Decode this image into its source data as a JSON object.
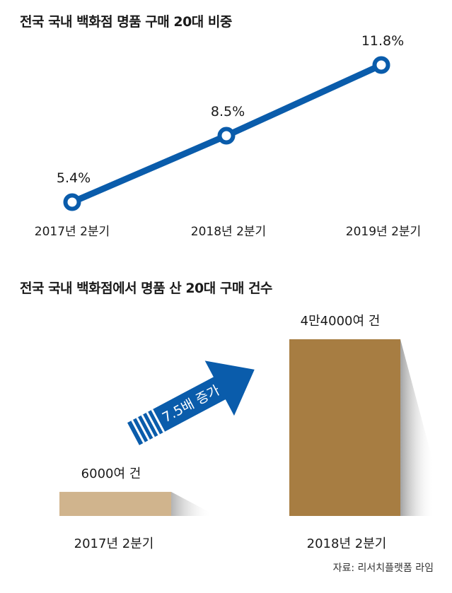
{
  "chart_data": [
    {
      "type": "line",
      "title": "전국 국내 백화점 명품 구매 20대 비중",
      "categories": [
        "2017년 2분기",
        "2018년 2분기",
        "2019년 2분기"
      ],
      "values": [
        5.4,
        8.5,
        11.8
      ],
      "value_labels": [
        "5.4%",
        "8.5%",
        "11.8%"
      ],
      "color": "#0a5cab"
    },
    {
      "type": "bar",
      "title": "전국 국내 백화점에서 명품 산 20대 구매 건수",
      "categories": [
        "2017년 2분기",
        "2018년 2분기"
      ],
      "values": [
        6000,
        44000
      ],
      "value_labels": [
        "6000여 건",
        "4만4000여 건"
      ],
      "colors": [
        "#d0b48d",
        "#a77d42"
      ],
      "annotation": "7.5배 증가",
      "annotation_color": "#0a5cab"
    }
  ],
  "source": "자료: 리서치플랫폼 라임"
}
